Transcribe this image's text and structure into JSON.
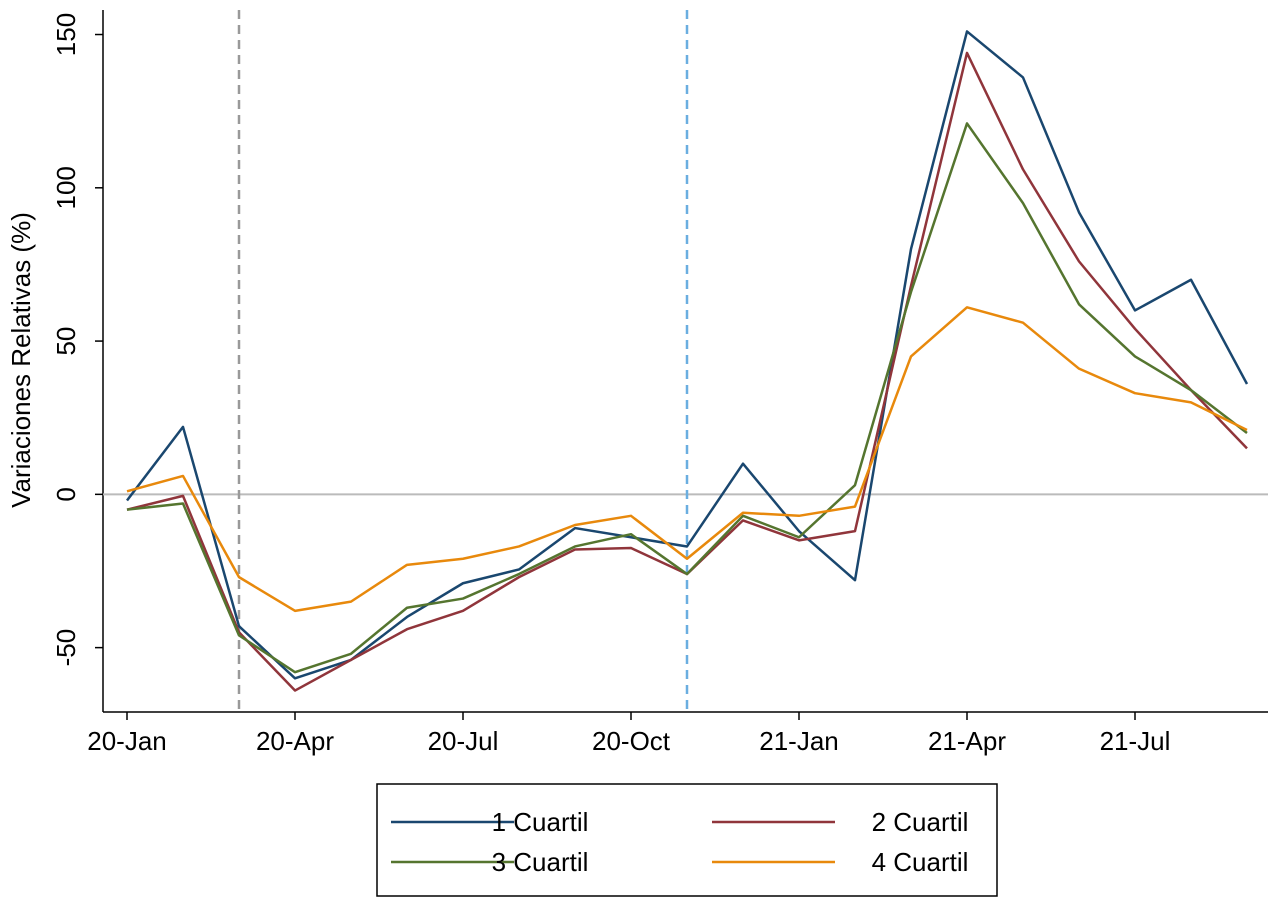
{
  "chart_data": {
    "type": "line",
    "y_label": "Variaciones Relativas (%)",
    "categories": [
      "20-Jan",
      null,
      null,
      "20-Apr",
      null,
      null,
      "20-Jul",
      null,
      null,
      "20-Oct",
      null,
      null,
      "21-Jan",
      null,
      null,
      "21-Apr",
      null,
      null,
      "21-Jul",
      null,
      null
    ],
    "series": [
      {
        "name": "1 Cuartil",
        "color": "#1a476f",
        "values": [
          -2,
          22,
          -43,
          -60,
          -54,
          -40,
          -29,
          -24.5,
          -11,
          -14,
          -17,
          10,
          -12,
          -28,
          80,
          151,
          136,
          92,
          60,
          70,
          36
        ]
      },
      {
        "name": "2 Cuartil",
        "color": "#90353b",
        "values": [
          -5,
          -0.5,
          -45,
          -64,
          -54,
          -44,
          -38,
          -27,
          -18,
          -17.5,
          -26,
          -8.5,
          -15,
          -12,
          68,
          144,
          106,
          76,
          54,
          34,
          15
        ]
      },
      {
        "name": "3 Cuartil",
        "color": "#55752f",
        "values": [
          -5,
          -3,
          -46,
          -58,
          -52,
          -37,
          -34,
          -26,
          -17,
          -13,
          -26,
          -7,
          -14,
          3,
          66,
          121,
          95,
          62,
          45,
          34,
          20
        ]
      },
      {
        "name": "4 Cuartil",
        "color": "#e8890c",
        "values": [
          1,
          6,
          -27,
          -38,
          -35,
          -23,
          -21,
          -17,
          -10,
          -7,
          -21,
          -6,
          -7,
          -4,
          45,
          61,
          56,
          41,
          33,
          30,
          21
        ]
      }
    ],
    "ylim": [
      -71,
      158
    ],
    "yticks": [
      -50,
      0,
      50,
      100,
      150
    ],
    "zero_line": true,
    "vlines": [
      {
        "index": 2,
        "color": "#999999"
      },
      {
        "index": 10,
        "color": "#6aaee0"
      }
    ],
    "legend": "bottom"
  }
}
